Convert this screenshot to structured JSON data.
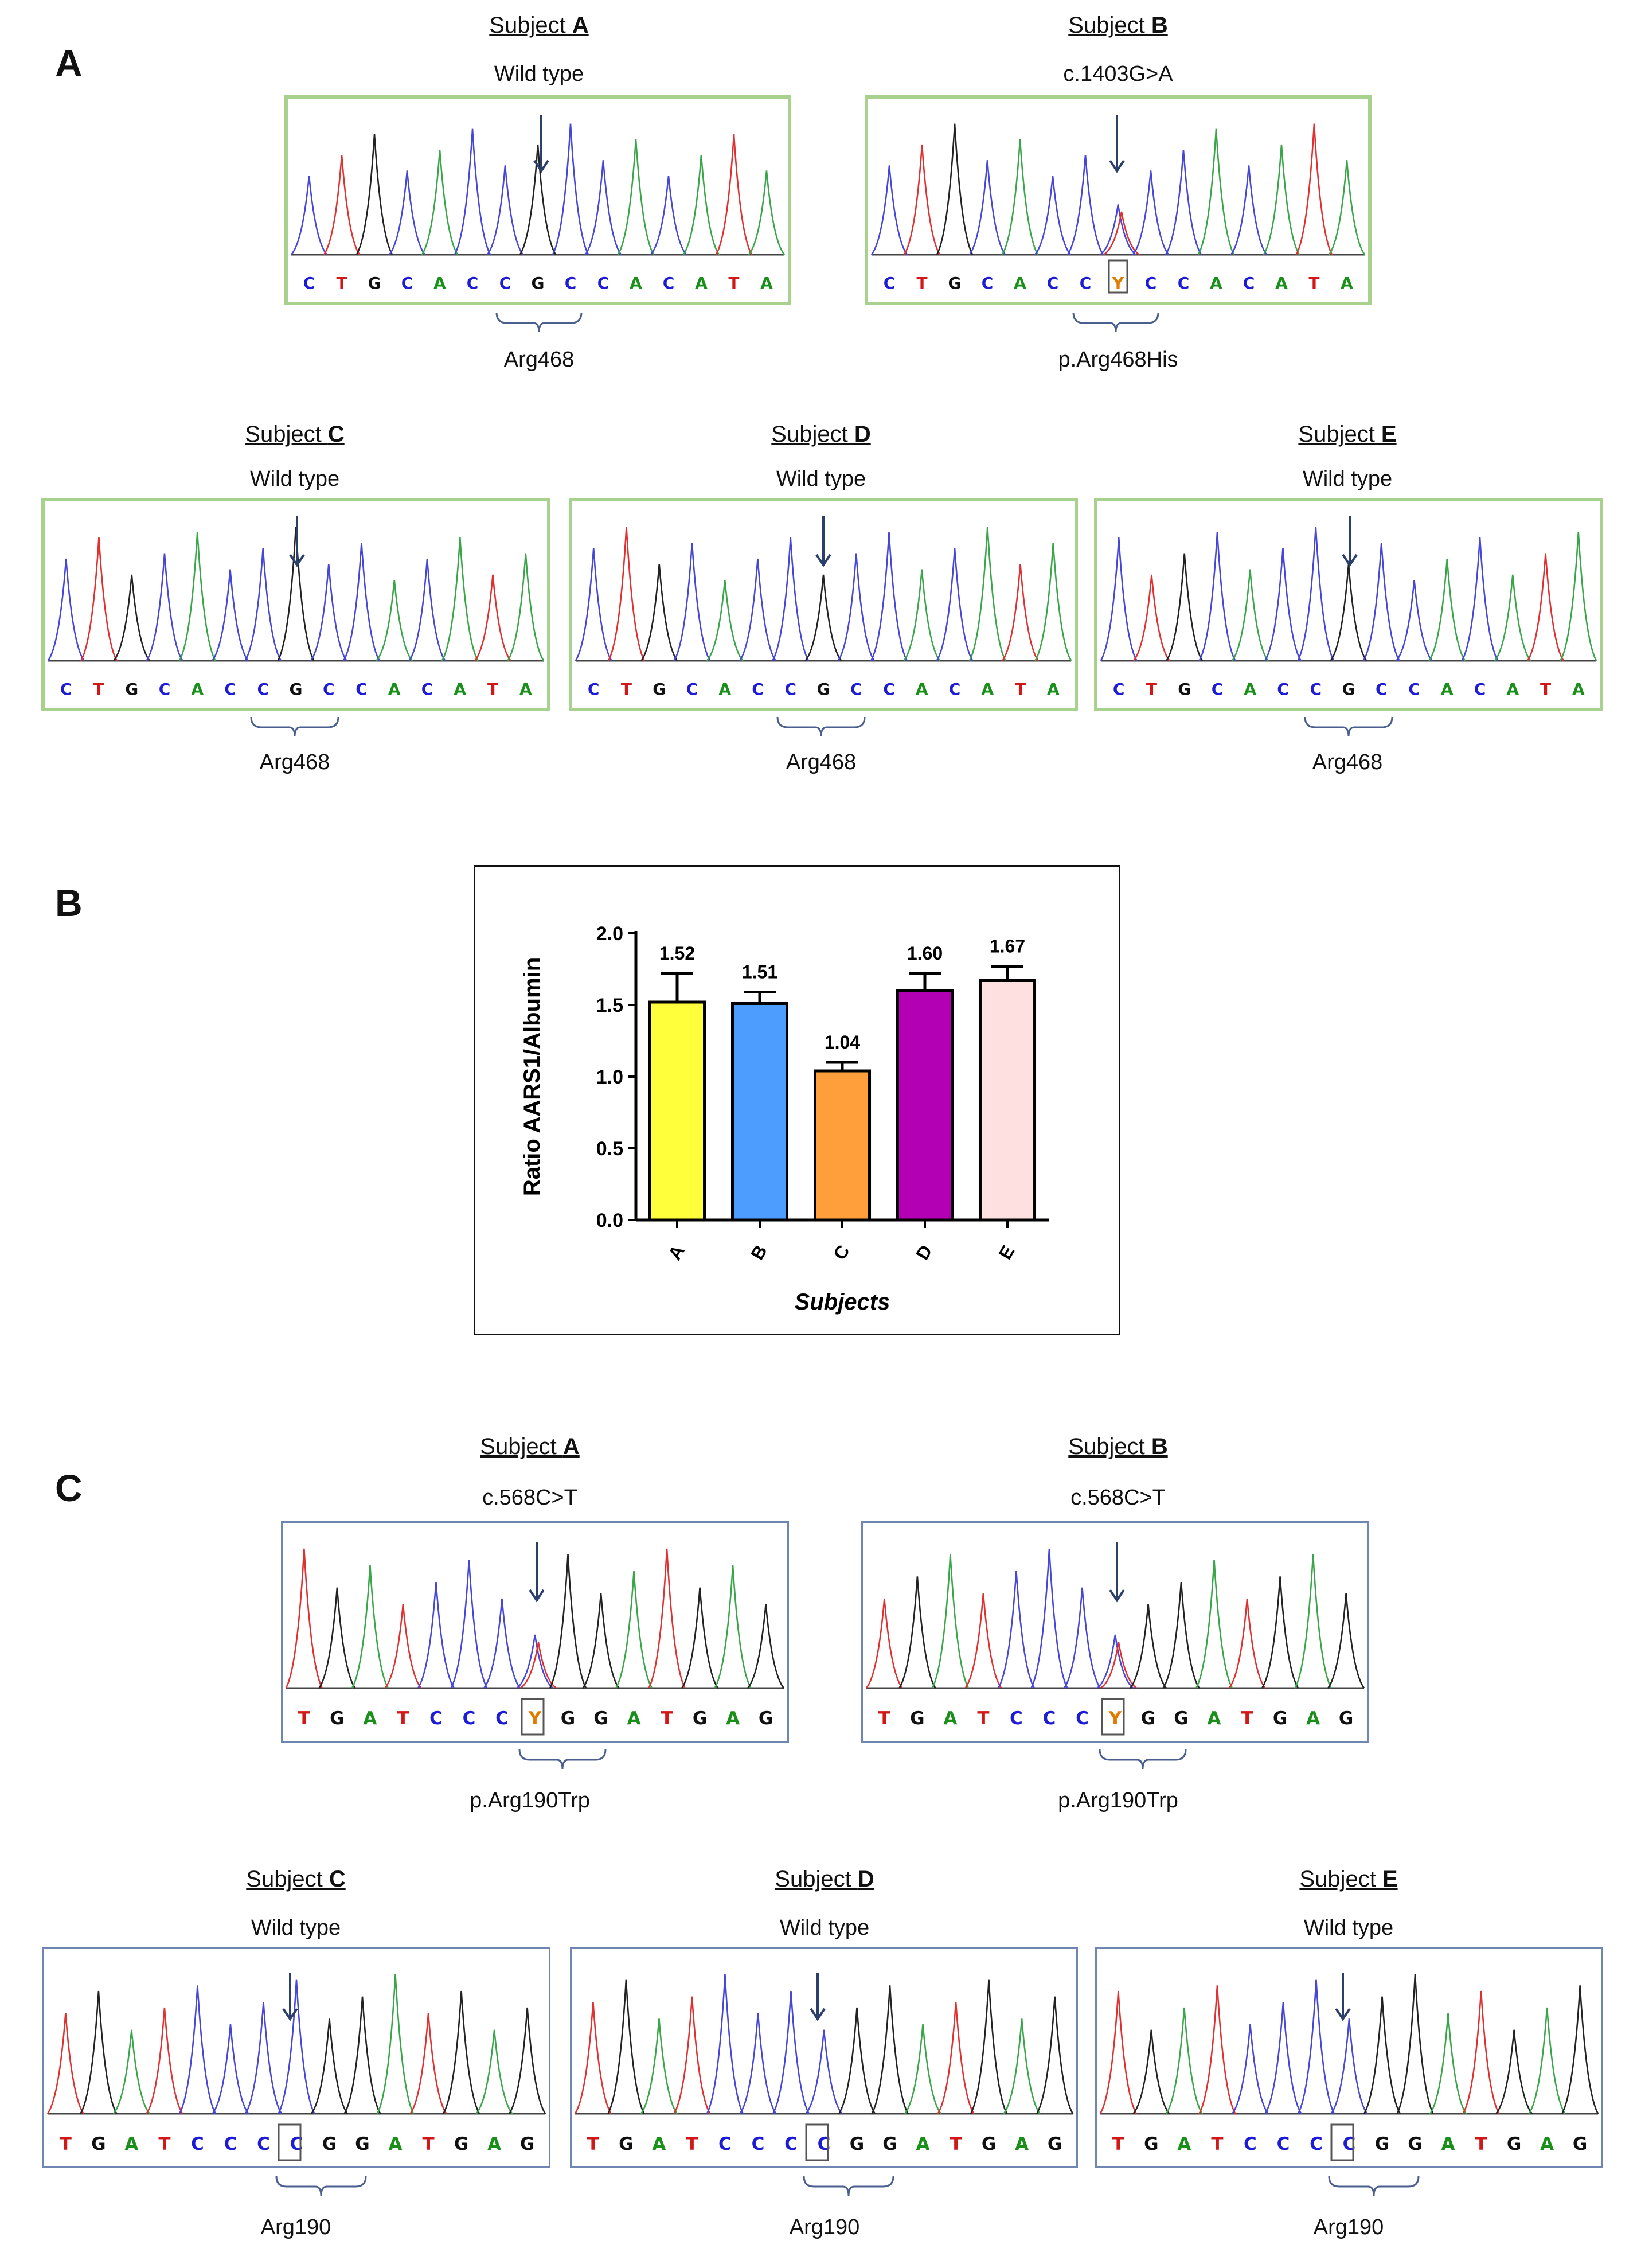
{
  "panel_letters": [
    "A",
    "B",
    "C"
  ],
  "panel_a": {
    "sequence": [
      "C",
      "T",
      "G",
      "C",
      "A",
      "C",
      "C",
      "G",
      "C",
      "C",
      "A",
      "C",
      "A",
      "T",
      "A"
    ],
    "sequence_b": [
      "C",
      "T",
      "G",
      "C",
      "A",
      "C",
      "C",
      "Y",
      "C",
      "C",
      "A",
      "C",
      "A",
      "T",
      "A"
    ],
    "subjects": [
      {
        "prefix": "Subject ",
        "letter": "A",
        "mutation": "Wild type",
        "residue": "Arg468"
      },
      {
        "prefix": "Subject ",
        "letter": "B",
        "mutation": "c.1403G>A",
        "residue": "p.Arg468His"
      },
      {
        "prefix": "Subject ",
        "letter": "C",
        "mutation": "Wild type",
        "residue": "Arg468"
      },
      {
        "prefix": "Subject ",
        "letter": "D",
        "mutation": "Wild type",
        "residue": "Arg468"
      },
      {
        "prefix": "Subject ",
        "letter": "E",
        "mutation": "Wild type",
        "residue": "Arg468"
      }
    ]
  },
  "panel_c": {
    "sequence_mut": [
      "T",
      "G",
      "A",
      "T",
      "C",
      "C",
      "C",
      "Y",
      "G",
      "G",
      "A",
      "T",
      "G",
      "A",
      "G"
    ],
    "sequence_wt": [
      "T",
      "G",
      "A",
      "T",
      "C",
      "C",
      "C",
      "C",
      "G",
      "G",
      "A",
      "T",
      "G",
      "A",
      "G"
    ],
    "subjects": [
      {
        "prefix": "Subject ",
        "letter": "A",
        "mutation": "c.568C>T",
        "residue": "p.Arg190Trp"
      },
      {
        "prefix": "Subject ",
        "letter": "B",
        "mutation": "c.568C>T",
        "residue": "p.Arg190Trp"
      },
      {
        "prefix": "Subject ",
        "letter": "C",
        "mutation": "Wild type",
        "residue": "Arg190"
      },
      {
        "prefix": "Subject ",
        "letter": "D",
        "mutation": "Wild type",
        "residue": "Arg190"
      },
      {
        "prefix": "Subject ",
        "letter": "E",
        "mutation": "Wild type",
        "residue": "Arg190"
      }
    ]
  },
  "base_colors": {
    "A": "#1a8f1a",
    "C": "#1c1cd6",
    "G": "#111111",
    "T": "#d01818",
    "Y": "#e07b00"
  },
  "chart_data": {
    "type": "bar",
    "categories": [
      "A",
      "B",
      "C",
      "D",
      "E"
    ],
    "values": [
      1.52,
      1.51,
      1.04,
      1.6,
      1.67
    ],
    "value_labels": [
      "1.52",
      "1.51",
      "1.04",
      "1.60",
      "1.67"
    ],
    "error_plus": [
      0.2,
      0.08,
      0.06,
      0.12,
      0.1
    ],
    "colors": [
      "#ffff3b",
      "#4d9cff",
      "#ff9f3c",
      "#b400b4",
      "#ffe0e0"
    ],
    "ylabel": "Ratio AARS1/Albumin",
    "xlabel": "Subjects",
    "ylim": [
      0,
      2.0
    ],
    "yticks": [
      "0.0",
      "0.5",
      "1.0",
      "1.5",
      "2.0"
    ],
    "grid": false
  }
}
